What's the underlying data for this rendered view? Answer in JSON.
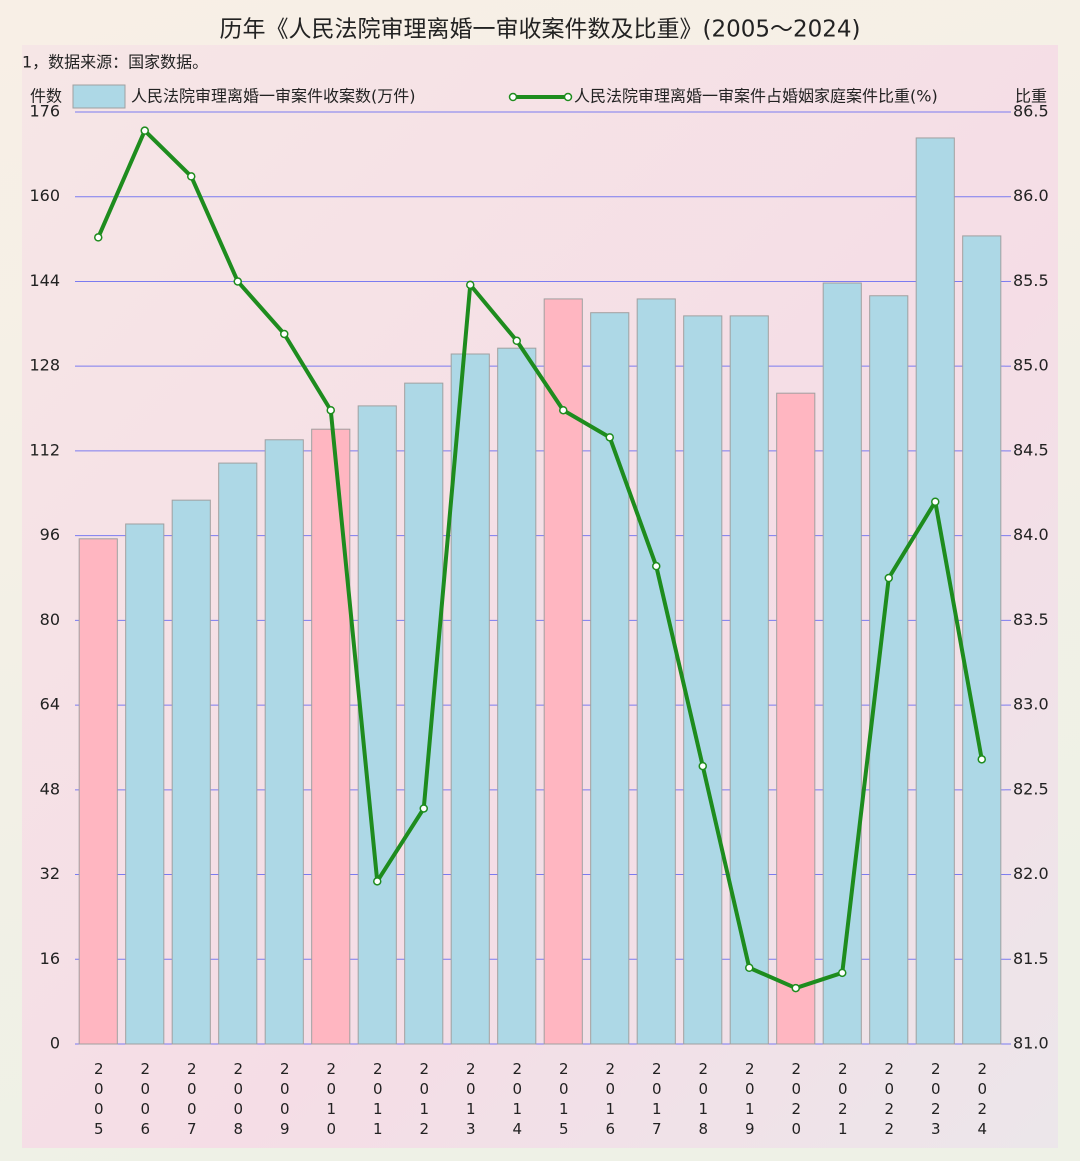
{
  "chart_data": {
    "type": "bar_line",
    "title": "历年《人民法院审理离婚一审收案件数及比重》(2005～2024)",
    "note": "1，数据来源：国家数据。",
    "y_label": "件数",
    "y2_label": "比重",
    "categories": [
      "2005",
      "2006",
      "2007",
      "2008",
      "2009",
      "2010",
      "2011",
      "2012",
      "2013",
      "2014",
      "2015",
      "2016",
      "2017",
      "2018",
      "2019",
      "2020",
      "2021",
      "2022",
      "2023",
      "2024"
    ],
    "series": [
      {
        "name": "人民法院审理离婚一审案件收案数(万件)",
        "type": "bar",
        "color": "#add8e6",
        "colors": [
          "#ffb6c1",
          "#add8e6",
          "#add8e6",
          "#add8e6",
          "#add8e6",
          "#ffb6c1",
          "#add8e6",
          "#add8e6",
          "#add8e6",
          "#add8e6",
          "#ffb6c1",
          "#add8e6",
          "#add8e6",
          "#add8e6",
          "#add8e6",
          "#ffb6c1",
          "#add8e6",
          "#add8e6",
          "#add8e6",
          "#add8e6"
        ],
        "values": [
          95.4,
          98.2,
          102.7,
          109.7,
          114.1,
          116.1,
          120.5,
          124.8,
          130.3,
          131.4,
          140.7,
          138.1,
          140.7,
          137.5,
          137.5,
          122.9,
          143.7,
          141.3,
          171.1,
          152.6
        ]
      },
      {
        "name": "人民法院审理离婚一审案件占婚姻家庭案件比重(%)",
        "type": "line",
        "axis": "y2",
        "color": "#1e8c1e",
        "values": [
          85.76,
          86.39,
          86.12,
          85.5,
          85.19,
          84.74,
          81.96,
          82.39,
          85.48,
          85.15,
          84.74,
          84.58,
          83.82,
          82.64,
          81.45,
          81.33,
          81.42,
          83.75,
          84.2,
          82.68
        ]
      }
    ],
    "ylim": [
      0,
      176
    ],
    "yticks": [
      0,
      16,
      32,
      48,
      64,
      80,
      96,
      112,
      128,
      144,
      160,
      176
    ],
    "y2lim": [
      81,
      86.5
    ],
    "y2ticks": [
      {
        "value": 81,
        "label": "81.0"
      },
      {
        "value": 81.5,
        "label": "81.5"
      },
      {
        "value": 82,
        "label": "82.0"
      },
      {
        "value": 82.5,
        "label": "82.5"
      },
      {
        "value": 83,
        "label": "83.0"
      },
      {
        "value": 83.5,
        "label": "83.5"
      },
      {
        "value": 84,
        "label": "84.0"
      },
      {
        "value": 84.5,
        "label": "84.5"
      },
      {
        "value": 85,
        "label": "85.0"
      },
      {
        "value": 85.5,
        "label": "85.5"
      },
      {
        "value": 86,
        "label": "86.0"
      },
      {
        "value": 86.5,
        "label": "86.5"
      }
    ],
    "grid": true
  }
}
